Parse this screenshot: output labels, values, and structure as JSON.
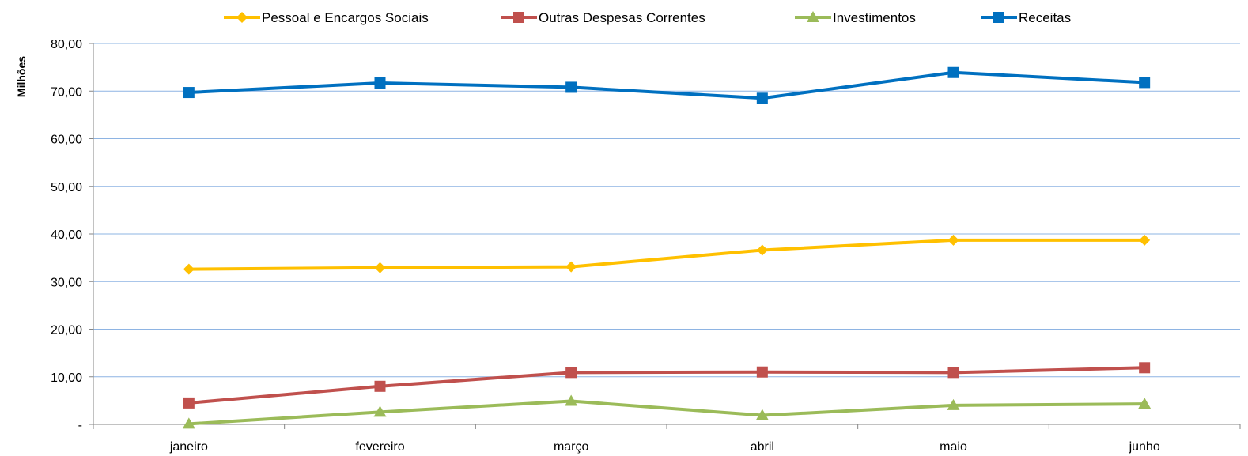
{
  "chart_data": {
    "type": "line",
    "title": "",
    "xlabel": "",
    "ylabel": "Milhões",
    "categories": [
      "janeiro",
      "fevereiro",
      "março",
      "abril",
      "maio",
      "junho"
    ],
    "ylim": [
      0,
      80
    ],
    "yticks": [
      0,
      10,
      20,
      30,
      40,
      50,
      60,
      70,
      80
    ],
    "ytick_labels": [
      "-",
      "10,00",
      "20,00",
      "30,00",
      "40,00",
      "50,00",
      "60,00",
      "70,00",
      "80,00"
    ],
    "grid": true,
    "legend_position": "top",
    "series": [
      {
        "name": "Pessoal e Encargos Sociais",
        "color": "#FFC000",
        "marker": "diamond",
        "values": [
          32.6,
          32.9,
          33.1,
          36.6,
          38.7,
          38.7
        ]
      },
      {
        "name": "Outras Despesas Correntes",
        "color": "#C0504D",
        "marker": "square",
        "values": [
          4.5,
          8.0,
          10.9,
          11.0,
          10.9,
          11.9
        ]
      },
      {
        "name": "Investimentos",
        "color": "#9BBB59",
        "marker": "triangle",
        "values": [
          0.1,
          2.6,
          4.9,
          1.9,
          4.0,
          4.3
        ]
      },
      {
        "name": "Receitas",
        "color": "#0070C0",
        "marker": "square",
        "values": [
          69.7,
          71.7,
          70.8,
          68.5,
          73.9,
          71.8
        ]
      }
    ]
  }
}
